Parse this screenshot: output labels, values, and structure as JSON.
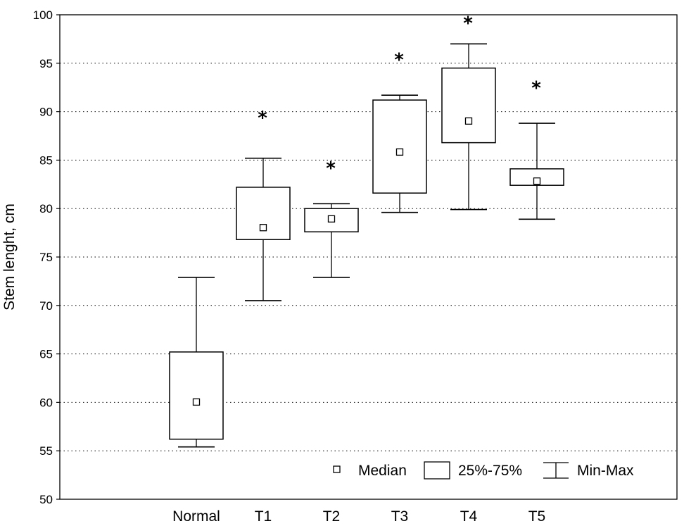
{
  "chart_data": {
    "type": "boxplot",
    "ylabel": "Stem lenght, cm",
    "xlabel": "",
    "ylim": [
      50,
      100
    ],
    "yticks": [
      50,
      55,
      60,
      65,
      70,
      75,
      80,
      85,
      90,
      95,
      100
    ],
    "grid": "horizontal dotted",
    "categories": [
      "Normal",
      "T1",
      "T2",
      "T3",
      "T4",
      "T5"
    ],
    "boxes": [
      {
        "category": "Normal",
        "min": 55.4,
        "q1": 56.2,
        "median": 60.0,
        "q3": 65.2,
        "max": 72.9,
        "marker": ""
      },
      {
        "category": "T1",
        "min": 70.5,
        "q1": 76.8,
        "median": 78.0,
        "q3": 82.2,
        "max": 85.2,
        "marker": "*"
      },
      {
        "category": "T2",
        "min": 72.9,
        "q1": 77.6,
        "median": 78.9,
        "q3": 80.0,
        "max": 80.5,
        "marker": "*"
      },
      {
        "category": "T3",
        "min": 79.6,
        "q1": 81.6,
        "median": 85.8,
        "q3": 91.2,
        "max": 91.7,
        "marker": "*"
      },
      {
        "category": "T4",
        "min": 79.9,
        "q1": 86.8,
        "median": 89.0,
        "q3": 94.5,
        "max": 97.0,
        "marker": "*"
      },
      {
        "category": "T5",
        "min": 78.9,
        "q1": 82.4,
        "median": 82.8,
        "q3": 84.1,
        "max": 88.8,
        "marker": "*"
      }
    ],
    "significance_marker_values": [
      null,
      89.6,
      84.4,
      95.6,
      99.4,
      92.7
    ],
    "legend": {
      "position": "bottom-right",
      "entries": [
        "Median",
        "25%-75%",
        "Min-Max"
      ]
    }
  }
}
